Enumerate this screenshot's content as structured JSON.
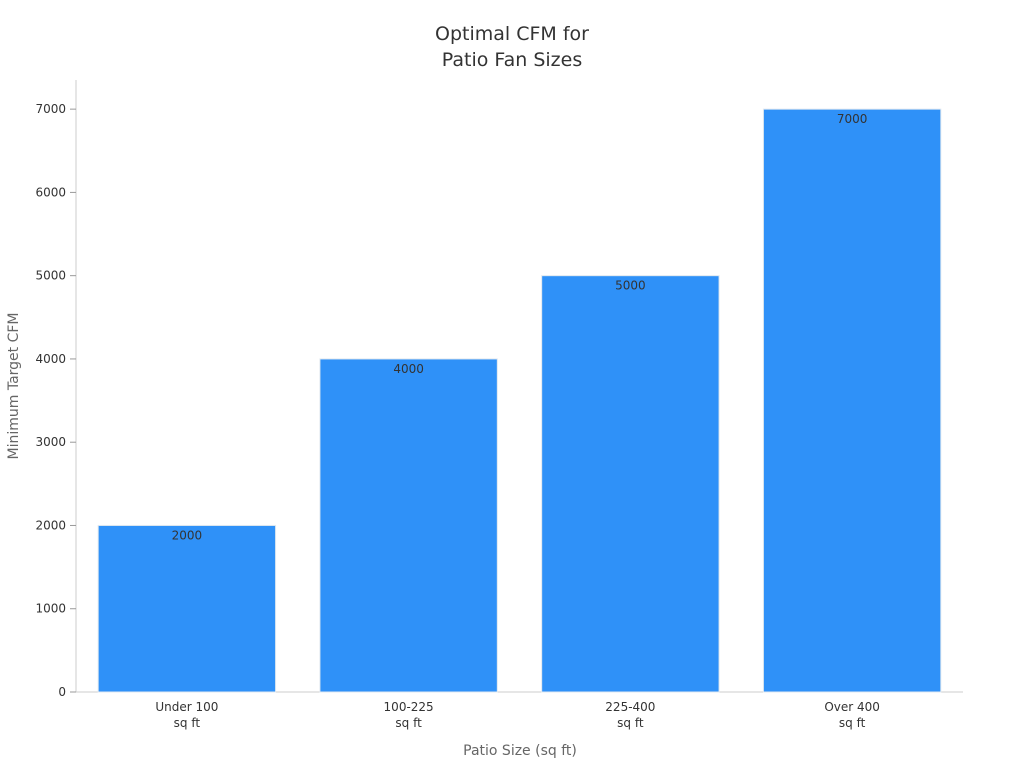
{
  "chart_data": {
    "type": "bar",
    "title": "Optimal CFM for\nPatio Fan Sizes",
    "x_label": "Patio Size (sq ft)",
    "y_label": "Minimum Target CFM",
    "categories": [
      "Under 100\nsq ft",
      "100-225\nsq ft",
      "225-400\nsq ft",
      "Over 400\nsq ft"
    ],
    "values": [
      2000,
      4000,
      5000,
      7000
    ],
    "color": "#2f91f8",
    "ylim": [
      0,
      7350
    ],
    "yticks": [
      0,
      1000,
      2000,
      3000,
      4000,
      5000,
      6000,
      7000
    ],
    "grid": false
  }
}
